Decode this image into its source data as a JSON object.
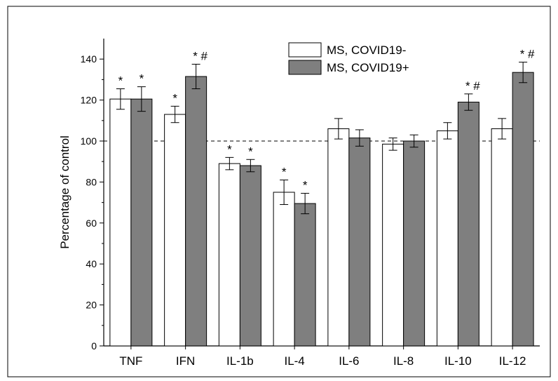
{
  "chart_data": {
    "type": "bar",
    "title": "",
    "xlabel": "",
    "ylabel": "Percentage of control",
    "ylim": [
      0,
      150
    ],
    "yticks": [
      0,
      20,
      40,
      60,
      80,
      100,
      120,
      140
    ],
    "reference_line": 100,
    "grid": false,
    "legend_position": "top-center",
    "categories": [
      "TNF",
      "IFN",
      "IL-1b",
      "IL-4",
      "IL-6",
      "IL-8",
      "IL-10",
      "IL-12"
    ],
    "series": [
      {
        "name": "MS, COVID19-",
        "color": "#ffffff",
        "values": [
          120.5,
          113,
          89,
          75,
          106,
          98.5,
          105,
          106
        ],
        "errors": [
          5,
          4,
          3,
          6,
          5,
          3,
          4,
          5
        ],
        "annotations": [
          "*",
          "*",
          "*",
          "*",
          "",
          "",
          "",
          ""
        ]
      },
      {
        "name": "MS, COVID19+",
        "color": "#7f7f7f",
        "values": [
          120.5,
          131.5,
          88,
          69.5,
          101.5,
          100,
          119,
          133.5
        ],
        "errors": [
          6,
          6,
          3,
          5,
          4,
          3,
          4,
          5
        ],
        "annotations": [
          "*",
          "* #",
          "*",
          "*",
          "",
          "",
          "* #",
          "* #"
        ]
      }
    ]
  }
}
